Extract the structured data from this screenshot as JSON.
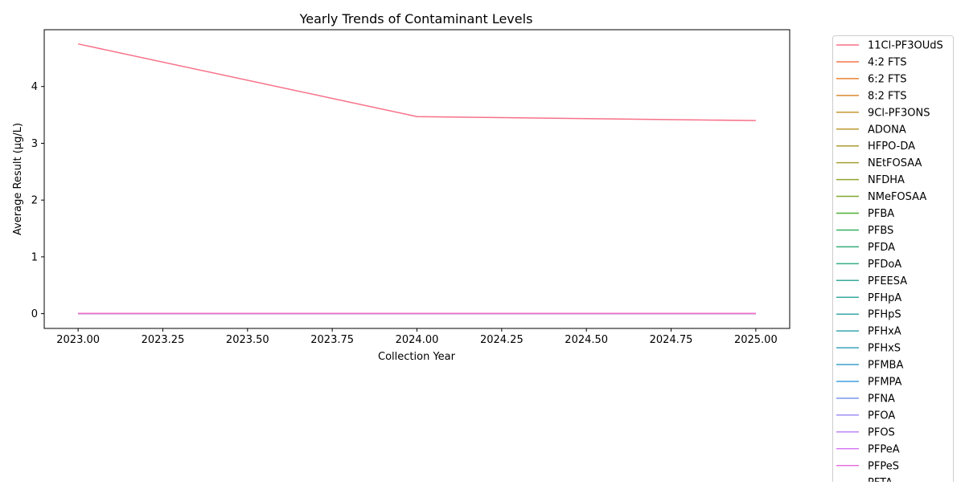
{
  "chart_data": {
    "type": "line",
    "title": "Yearly Trends of Contaminant Levels",
    "xlabel": "Collection Year",
    "ylabel": "Average Result (µg/L)",
    "xlim": [
      2022.9,
      2025.1
    ],
    "ylim": [
      -0.26,
      5.0
    ],
    "x_ticks": [
      2023.0,
      2023.25,
      2023.5,
      2023.75,
      2024.0,
      2024.25,
      2024.5,
      2024.75,
      2025.0
    ],
    "x_tick_labels": [
      "2023.00",
      "2023.25",
      "2023.50",
      "2023.75",
      "2024.00",
      "2024.25",
      "2024.50",
      "2024.75",
      "2025.00"
    ],
    "y_ticks": [
      0,
      1,
      2,
      3,
      4
    ],
    "y_tick_labels": [
      "0",
      "1",
      "2",
      "3",
      "4"
    ],
    "grid": false,
    "legend_position": "outside-right",
    "x": [
      2023,
      2024,
      2025
    ],
    "series": [
      {
        "name": "11Cl-PF3OUdS",
        "color": "#f77189",
        "values": [
          4.75,
          3.47,
          3.4
        ]
      },
      {
        "name": "4:2 FTS",
        "color": "#f7754f",
        "values": [
          0.004,
          0.004,
          0.004
        ]
      },
      {
        "name": "6:2 FTS",
        "color": "#e68332",
        "values": [
          0.004,
          0.004,
          0.004
        ]
      },
      {
        "name": "8:2 FTS",
        "color": "#dc8932",
        "values": [
          0.004,
          0.004,
          0.004
        ]
      },
      {
        "name": "9Cl-PF3ONS",
        "color": "#c59832",
        "values": [
          0.004,
          0.004,
          0.004
        ]
      },
      {
        "name": "ADONA",
        "color": "#bb9832",
        "values": [
          0.004,
          0.004,
          0.004
        ]
      },
      {
        "name": "HFPO-DA",
        "color": "#ad9c31",
        "values": [
          0.004,
          0.004,
          0.004
        ]
      },
      {
        "name": "NEtFOSAA",
        "color": "#a4a031",
        "values": [
          0.004,
          0.004,
          0.004
        ]
      },
      {
        "name": "NFDHA",
        "color": "#93a431",
        "values": [
          0.004,
          0.004,
          0.004
        ]
      },
      {
        "name": "NMeFOSAA",
        "color": "#7eaa31",
        "values": [
          0.004,
          0.004,
          0.004
        ]
      },
      {
        "name": "PFBA",
        "color": "#4faf32",
        "values": [
          0.004,
          0.004,
          0.004
        ]
      },
      {
        "name": "PFBS",
        "color": "#33b15c",
        "values": [
          0.004,
          0.004,
          0.004
        ]
      },
      {
        "name": "PFDA",
        "color": "#35ad7a",
        "values": [
          0.004,
          0.004,
          0.004
        ]
      },
      {
        "name": "PFDoA",
        "color": "#36ab89",
        "values": [
          0.004,
          0.004,
          0.004
        ]
      },
      {
        "name": "PFEESA",
        "color": "#37a996",
        "values": [
          0.004,
          0.004,
          0.004
        ]
      },
      {
        "name": "PFHpA",
        "color": "#38a8a0",
        "values": [
          0.004,
          0.004,
          0.004
        ]
      },
      {
        "name": "PFHpS",
        "color": "#39a7a8",
        "values": [
          0.004,
          0.004,
          0.004
        ]
      },
      {
        "name": "PFHxA",
        "color": "#3aa5b1",
        "values": [
          0.004,
          0.004,
          0.004
        ]
      },
      {
        "name": "PFHxS",
        "color": "#3ba3bd",
        "values": [
          0.004,
          0.004,
          0.004
        ]
      },
      {
        "name": "PFMBA",
        "color": "#3ea0cc",
        "values": [
          0.004,
          0.004,
          0.004
        ]
      },
      {
        "name": "PFMPA",
        "color": "#449de0",
        "values": [
          0.004,
          0.004,
          0.004
        ]
      },
      {
        "name": "PFNA",
        "color": "#7a97e9",
        "values": [
          0.004,
          0.004,
          0.004
        ]
      },
      {
        "name": "PFOA",
        "color": "#a18ff4",
        "values": [
          0.004,
          0.004,
          0.004
        ]
      },
      {
        "name": "PFOS",
        "color": "#bf84f4",
        "values": [
          0.004,
          0.004,
          0.004
        ]
      },
      {
        "name": "PFPeA",
        "color": "#d67bf4",
        "values": [
          0.004,
          0.004,
          0.004
        ]
      },
      {
        "name": "PFPeS",
        "color": "#e373e0",
        "values": [
          0.004,
          0.004,
          0.004
        ]
      },
      {
        "name": "PFTA",
        "color": "#f070c4",
        "values": [
          0.004,
          0.004,
          0.004
        ]
      }
    ]
  }
}
